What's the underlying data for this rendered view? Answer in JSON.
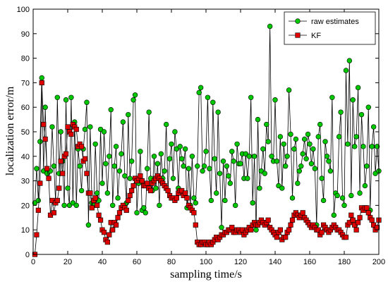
{
  "chart_data": {
    "type": "line",
    "title": "",
    "xlabel": "sampling time/s",
    "ylabel": "localization error/m",
    "xlim": [
      0,
      200
    ],
    "ylim": [
      0,
      100
    ],
    "xticks": [
      0,
      20,
      40,
      60,
      80,
      100,
      120,
      140,
      160,
      180,
      200
    ],
    "yticks": [
      0,
      10,
      20,
      30,
      40,
      50,
      60,
      70,
      80,
      90,
      100
    ],
    "grid": false,
    "legend_position": "top-right",
    "series": [
      {
        "name": "raw estimates",
        "color": "#000000",
        "marker": "circle",
        "marker_fill": "#00c800",
        "x": [
          1,
          2,
          3,
          4,
          5,
          6,
          7,
          8,
          9,
          10,
          11,
          12,
          13,
          14,
          15,
          16,
          17,
          18,
          19,
          20,
          21,
          22,
          23,
          24,
          25,
          26,
          27,
          28,
          29,
          30,
          31,
          32,
          33,
          34,
          35,
          36,
          37,
          38,
          39,
          40,
          41,
          42,
          43,
          44,
          45,
          46,
          47,
          48,
          49,
          50,
          51,
          52,
          53,
          54,
          55,
          56,
          57,
          58,
          59,
          60,
          61,
          62,
          63,
          64,
          65,
          66,
          67,
          68,
          69,
          70,
          71,
          72,
          73,
          74,
          75,
          76,
          77,
          78,
          79,
          80,
          81,
          82,
          83,
          84,
          85,
          86,
          87,
          88,
          89,
          90,
          91,
          92,
          93,
          94,
          95,
          96,
          97,
          98,
          99,
          100,
          101,
          102,
          103,
          104,
          105,
          106,
          107,
          108,
          109,
          110,
          111,
          112,
          113,
          114,
          115,
          116,
          117,
          118,
          119,
          120,
          121,
          122,
          123,
          124,
          125,
          126,
          127,
          128,
          129,
          130,
          131,
          132,
          133,
          134,
          135,
          136,
          137,
          138,
          139,
          140,
          141,
          142,
          143,
          144,
          145,
          146,
          147,
          148,
          149,
          150,
          151,
          152,
          153,
          154,
          155,
          156,
          157,
          158,
          159,
          160,
          161,
          162,
          163,
          164,
          165,
          166,
          167,
          168,
          169,
          170,
          171,
          172,
          173,
          174,
          175,
          176,
          177,
          178,
          179,
          180,
          181,
          182,
          183,
          184,
          185,
          186,
          187,
          188,
          189,
          190,
          191,
          192,
          193,
          194,
          195,
          196,
          197,
          198,
          199,
          200
        ],
        "y": [
          21,
          35,
          22,
          46,
          72,
          34,
          60,
          33,
          31,
          34,
          52,
          36,
          21,
          64,
          33,
          50,
          38,
          20,
          63,
          27,
          20,
          64,
          21,
          54,
          20,
          43,
          36,
          26,
          43,
          51,
          62,
          12,
          52,
          21,
          20,
          45,
          25,
          22,
          51,
          29,
          50,
          37,
          25,
          40,
          59,
          20,
          36,
          44,
          23,
          34,
          41,
          54,
          32,
          21,
          57,
          31,
          38,
          63,
          65,
          17,
          29,
          42,
          18,
          19,
          17,
          35,
          58,
          31,
          26,
          40,
          27,
          37,
          20,
          41,
          31,
          34,
          53,
          26,
          39,
          45,
          31,
          50,
          43,
          27,
          44,
          39,
          36,
          43,
          19,
          35,
          20,
          40,
          23,
          21,
          36,
          66,
          68,
          34,
          36,
          42,
          64,
          35,
          22,
          62,
          39,
          25,
          58,
          33,
          11,
          38,
          22,
          36,
          32,
          29,
          42,
          38,
          20,
          45,
          37,
          37,
          41,
          31,
          41,
          31,
          40,
          64,
          21,
          40,
          10,
          55,
          27,
          34,
          43,
          33,
          53,
          46,
          93,
          40,
          38,
          63,
          38,
          28,
          48,
          27,
          45,
          36,
          40,
          67,
          49,
          23,
          43,
          47,
          29,
          34,
          36,
          41,
          47,
          39,
          49,
          45,
          37,
          43,
          35,
          12,
          48,
          53,
          31,
          22,
          46,
          40,
          38,
          34,
          64,
          16,
          25,
          24,
          48,
          58,
          23,
          20,
          75,
          45,
          79,
          24,
          63,
          44,
          48,
          68,
          25,
          57,
          44,
          28,
          36,
          60,
          18,
          44,
          52,
          33,
          44,
          34
        ]
      },
      {
        "name": "KF",
        "color": "#000000",
        "marker": "square",
        "marker_fill": "#e00000",
        "x": [
          1,
          2,
          3,
          4,
          5,
          6,
          7,
          8,
          9,
          10,
          11,
          12,
          13,
          14,
          15,
          16,
          17,
          18,
          19,
          20,
          21,
          22,
          23,
          24,
          25,
          26,
          27,
          28,
          29,
          30,
          31,
          32,
          33,
          34,
          35,
          36,
          37,
          38,
          39,
          40,
          41,
          42,
          43,
          44,
          45,
          46,
          47,
          48,
          49,
          50,
          51,
          52,
          53,
          54,
          55,
          56,
          57,
          58,
          59,
          60,
          61,
          62,
          63,
          64,
          65,
          66,
          67,
          68,
          69,
          70,
          71,
          72,
          73,
          74,
          75,
          76,
          77,
          78,
          79,
          80,
          81,
          82,
          83,
          84,
          85,
          86,
          87,
          88,
          89,
          90,
          91,
          92,
          93,
          94,
          95,
          96,
          97,
          98,
          99,
          100,
          101,
          102,
          103,
          104,
          105,
          106,
          107,
          108,
          109,
          110,
          111,
          112,
          113,
          114,
          115,
          116,
          117,
          118,
          119,
          120,
          121,
          122,
          123,
          124,
          125,
          126,
          127,
          128,
          129,
          130,
          131,
          132,
          133,
          134,
          135,
          136,
          137,
          138,
          139,
          140,
          141,
          142,
          143,
          144,
          145,
          146,
          147,
          148,
          149,
          150,
          151,
          152,
          153,
          154,
          155,
          156,
          157,
          158,
          159,
          160,
          161,
          162,
          163,
          164,
          165,
          166,
          167,
          168,
          169,
          170,
          171,
          172,
          173,
          174,
          175,
          176,
          177,
          178,
          179,
          180,
          181,
          182,
          183,
          184,
          185,
          186,
          187,
          188,
          189,
          190,
          191,
          192,
          193,
          194,
          195,
          196,
          197,
          198,
          199,
          200
        ],
        "y": [
          0,
          8,
          18,
          29,
          70,
          53,
          47,
          35,
          31,
          16,
          22,
          17,
          21,
          22,
          27,
          38,
          33,
          40,
          41,
          52,
          50,
          49,
          53,
          52,
          51,
          44,
          45,
          44,
          38,
          39,
          33,
          25,
          25,
          19,
          22,
          23,
          20,
          16,
          14,
          10,
          9,
          6,
          5,
          8,
          13,
          10,
          13,
          12,
          15,
          17,
          19,
          20,
          19,
          18,
          22,
          24,
          26,
          28,
          31,
          30,
          31,
          32,
          30,
          28,
          28,
          29,
          27,
          26,
          29,
          30,
          31,
          32,
          31,
          30,
          29,
          28,
          27,
          26,
          24,
          23,
          23,
          22,
          23,
          25,
          26,
          26,
          24,
          25,
          23,
          20,
          19,
          18,
          17,
          12,
          5,
          4,
          4,
          5,
          5,
          4,
          4,
          5,
          4,
          5,
          6,
          7,
          6,
          7,
          8,
          8,
          9,
          9,
          10,
          10,
          11,
          9,
          9,
          10,
          10,
          9,
          10,
          8,
          9,
          10,
          11,
          10,
          12,
          13,
          12,
          12,
          13,
          14,
          13,
          12,
          13,
          14,
          11,
          10,
          9,
          8,
          7,
          9,
          10,
          6,
          7,
          7,
          9,
          10,
          12,
          14,
          16,
          17,
          16,
          15,
          16,
          17,
          15,
          14,
          13,
          12,
          11,
          12,
          11,
          10,
          10,
          8,
          9,
          12,
          11,
          10,
          9,
          10,
          11,
          12,
          11,
          10,
          10,
          9,
          8,
          7,
          7,
          12,
          13,
          16,
          14,
          12,
          10,
          13,
          15,
          19,
          18,
          19,
          19,
          17,
          15,
          14,
          12,
          10,
          11,
          14
        ]
      }
    ]
  }
}
